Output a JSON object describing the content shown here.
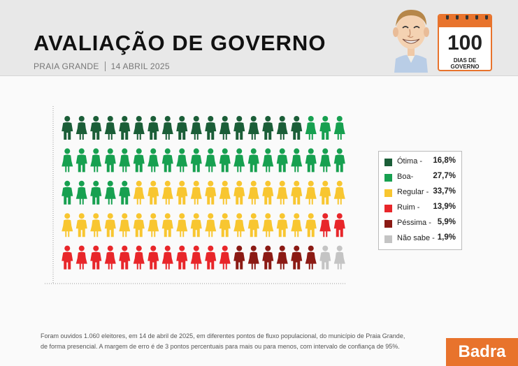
{
  "header": {
    "title": "AVALIAÇÃO DE GOVERNO",
    "location": "PRAIA GRANDE",
    "date": "14 ABRIL 2025",
    "badge_number": "100",
    "badge_label": "DIAS DE GOVERNO"
  },
  "chart_data": {
    "type": "pictogram",
    "total_icons": 100,
    "layout_columns": 20,
    "layout_rows": 5,
    "categories": [
      "Ótima",
      "Boa",
      "Regular",
      "Ruim",
      "Péssima",
      "Não sabe"
    ],
    "values": [
      16.8,
      27.7,
      33.7,
      13.9,
      5.9,
      1.9
    ],
    "icon_counts": [
      17,
      28,
      33,
      14,
      6,
      2
    ],
    "colors": [
      "#1b5e38",
      "#17a050",
      "#f8c630",
      "#e8262a",
      "#8b1a14",
      "#c4c4c4"
    ],
    "legend_position": "right"
  },
  "legend": [
    {
      "label": "Ótima -",
      "value": "16,8",
      "suffix": "%",
      "color": "#1b5e38"
    },
    {
      "label": "Boa-",
      "value": "27,7",
      "suffix": "%",
      "color": "#17a050"
    },
    {
      "label": "Regular -",
      "value": "33,7",
      "suffix": "%",
      "color": "#f8c630"
    },
    {
      "label": "Ruim -",
      "value": "13,9",
      "suffix": "%",
      "color": "#e8262a"
    },
    {
      "label": "Péssima -",
      "value": "5,9",
      "suffix": "%",
      "color": "#8b1a14"
    },
    {
      "label": "Não sabe -",
      "value": "1,9",
      "suffix": "%",
      "color": "#c4c4c4"
    }
  ],
  "footnote": {
    "line1": "Foram ouvidos 1.060 eleitores, em 14 de abril de 2025, em diferentes pontos de fluxo populacional, do município de Praia Grande,",
    "line2": "de forma presencial. A margem de erro é de 3 pontos percentuais para mais ou para menos, com intervalo de confiança de 95%."
  },
  "brand": "Badra"
}
